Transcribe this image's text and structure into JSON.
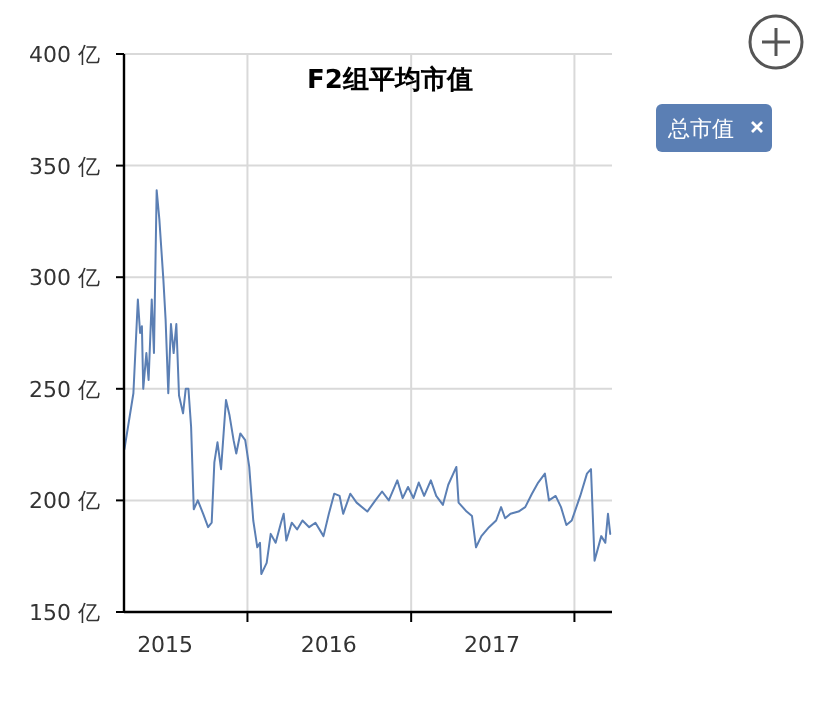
{
  "chart_data": {
    "type": "line",
    "title": "F2组平均市值",
    "x": [
      "2015-04-01",
      "2015-04-21",
      "2015-05-01",
      "2015-05-06",
      "2015-05-10",
      "2015-05-13",
      "2015-05-20",
      "2015-05-25",
      "2015-06-01",
      "2015-06-06",
      "2015-06-12",
      "2015-06-18",
      "2015-06-27",
      "2015-07-02",
      "2015-07-08",
      "2015-07-14",
      "2015-07-20",
      "2015-07-26",
      "2015-08-01",
      "2015-08-10",
      "2015-08-16",
      "2015-08-22",
      "2015-08-28",
      "2015-09-03",
      "2015-09-12",
      "2015-09-24",
      "2015-10-05",
      "2015-10-13",
      "2015-10-19",
      "2015-10-26",
      "2015-11-03",
      "2015-11-14",
      "2015-11-22",
      "2015-12-01",
      "2015-12-07",
      "2015-12-16",
      "2015-12-27",
      "2016-01-05",
      "2016-01-14",
      "2016-01-23",
      "2016-01-29",
      "2016-02-01",
      "2016-02-13",
      "2016-02-22",
      "2016-03-04",
      "2016-03-16",
      "2016-03-22",
      "2016-03-28",
      "2016-04-09",
      "2016-04-21",
      "2016-05-03",
      "2016-05-18",
      "2016-06-01",
      "2016-06-19",
      "2016-07-01",
      "2016-07-13",
      "2016-07-25",
      "2016-08-02",
      "2016-08-18",
      "2016-09-01",
      "2016-09-25",
      "2016-10-13",
      "2016-10-28",
      "2016-11-12",
      "2016-12-01",
      "2016-12-13",
      "2016-12-25",
      "2017-01-06",
      "2017-01-18",
      "2017-01-30",
      "2017-02-14",
      "2017-02-26",
      "2017-03-13",
      "2017-03-25",
      "2017-04-12",
      "2017-04-17",
      "2017-05-05",
      "2017-05-17",
      "2017-05-26",
      "2017-06-07",
      "2017-06-24",
      "2017-07-10",
      "2017-07-21",
      "2017-07-30",
      "2017-08-11",
      "2017-08-29",
      "2017-09-13",
      "2017-09-28",
      "2017-10-12",
      "2017-10-27",
      "2017-11-05",
      "2017-11-20",
      "2017-12-02",
      "2017-12-14",
      "2017-12-26",
      "2018-01-14",
      "2018-01-29",
      "2018-02-07",
      "2018-02-15",
      "2018-03-02",
      "2018-03-11",
      "2018-03-17",
      "2018-03-22"
    ],
    "series": [
      {
        "name": "总市值",
        "color": "#5b7fb4",
        "values": [
          223,
          248,
          290,
          275,
          278,
          250,
          266,
          254,
          290,
          266,
          339,
          326,
          299,
          281,
          248,
          279,
          266,
          279,
          247,
          239,
          250,
          250,
          233,
          196,
          200,
          194,
          188,
          190,
          217,
          226,
          214,
          245,
          238,
          227,
          221,
          230,
          227,
          215,
          191,
          179,
          181,
          167,
          172,
          185,
          181,
          190,
          194,
          182,
          190,
          187,
          191,
          188,
          190,
          184,
          194,
          203,
          202,
          194,
          203,
          199,
          195,
          200,
          204,
          200,
          209,
          201,
          206,
          201,
          208,
          202,
          209,
          202,
          198,
          207,
          215,
          199,
          195,
          193,
          179,
          184,
          188,
          191,
          197,
          192,
          194,
          195,
          197,
          203,
          208,
          212,
          200,
          202,
          197,
          189,
          191,
          202,
          212,
          214,
          173,
          184,
          181,
          194,
          185
        ]
      }
    ],
    "xlim": [
      "2015-03-31",
      "2018-03-26"
    ],
    "xticks": [
      {
        "value": "2015-07-01",
        "label": "2015"
      },
      {
        "value": "2016-01-01",
        "label": null
      },
      {
        "value": "2016-07-01",
        "label": "2016"
      },
      {
        "value": "2017-01-01",
        "label": null
      },
      {
        "value": "2017-07-01",
        "label": "2017"
      },
      {
        "value": "2018-01-01",
        "label": null
      }
    ],
    "ylim": [
      150,
      400
    ],
    "yticks": [
      {
        "value": 150,
        "label": "150 亿"
      },
      {
        "value": 200,
        "label": "200 亿"
      },
      {
        "value": 250,
        "label": "250 亿"
      },
      {
        "value": 300,
        "label": "300 亿"
      },
      {
        "value": 350,
        "label": "350 亿"
      },
      {
        "value": 400,
        "label": "400 亿"
      }
    ],
    "grid": true,
    "legend": "top right",
    "marker": "none",
    "line_style": "solid"
  }
}
